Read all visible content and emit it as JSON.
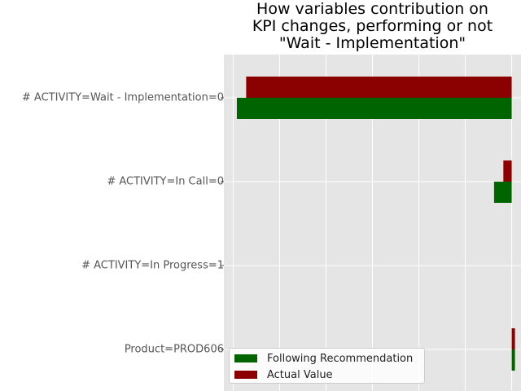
{
  "chart_data": {
    "type": "bar",
    "orientation": "horizontal",
    "title_lines": [
      "How variables contribution on",
      "KPI changes, performing or not",
      "\"Wait - Implementation\""
    ],
    "categories": [
      "# ACTIVITY=Wait - Implementation=0",
      "# ACTIVITY=In Call=0",
      "# ACTIVITY=In Progress=1",
      "Product=PROD606"
    ],
    "series": [
      {
        "name": "Following Recommendation",
        "color": "#006400",
        "values": [
          -0.592,
          -0.038,
          0.0,
          0.007
        ]
      },
      {
        "name": "Actual Value",
        "color": "#8b0000",
        "values": [
          -0.572,
          -0.018,
          0.0,
          0.007
        ]
      }
    ],
    "xlim": [
      -0.62,
      0.02
    ],
    "grid": true,
    "legend_position": "lower-left",
    "background": "#e5e5e5"
  }
}
